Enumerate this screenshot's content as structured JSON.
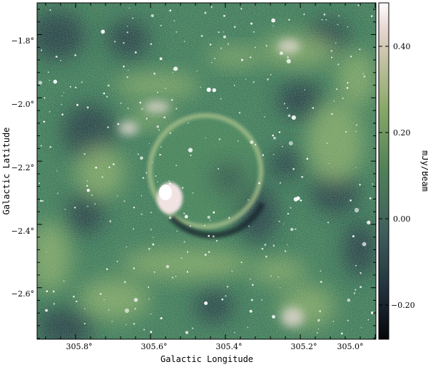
{
  "figure": {
    "x_axis": {
      "label": "Galactic Longitude",
      "ticks": [
        {
          "value": 305.8,
          "label": "305.8°"
        },
        {
          "value": 305.6,
          "label": "305.6°"
        },
        {
          "value": 305.4,
          "label": "305.4°"
        },
        {
          "value": 305.2,
          "label": "305.2°"
        },
        {
          "value": 305.0,
          "label": "305.0°"
        }
      ]
    },
    "y_axis": {
      "label": "Galactic Latitude",
      "ticks": [
        {
          "value": -1.8,
          "label": "−1.8°"
        },
        {
          "value": -2.0,
          "label": "−2.0°"
        },
        {
          "value": -2.2,
          "label": "−2.2°"
        },
        {
          "value": -2.4,
          "label": "−2.4°"
        },
        {
          "value": -2.6,
          "label": "−2.6°"
        }
      ]
    },
    "colorbar": {
      "label": "mJy/Beam",
      "range": [
        -0.28,
        0.5
      ],
      "ticks": [
        {
          "value": 0.4,
          "label": "0.40"
        },
        {
          "value": 0.2,
          "label": "0.20"
        },
        {
          "value": 0.0,
          "label": "0.00"
        },
        {
          "value": -0.2,
          "label": "−0.20"
        }
      ],
      "colors": [
        "#050608",
        "#2b3d45",
        "#456e63",
        "#5f9156",
        "#a5b97f",
        "#e3d3cf",
        "#ffffff"
      ]
    },
    "image_palette": {
      "background": "#3d7a58",
      "dark": "#1e3040",
      "bright": "#8fb169",
      "highlight": "#e7d9d6",
      "source": "#ffffff"
    }
  }
}
